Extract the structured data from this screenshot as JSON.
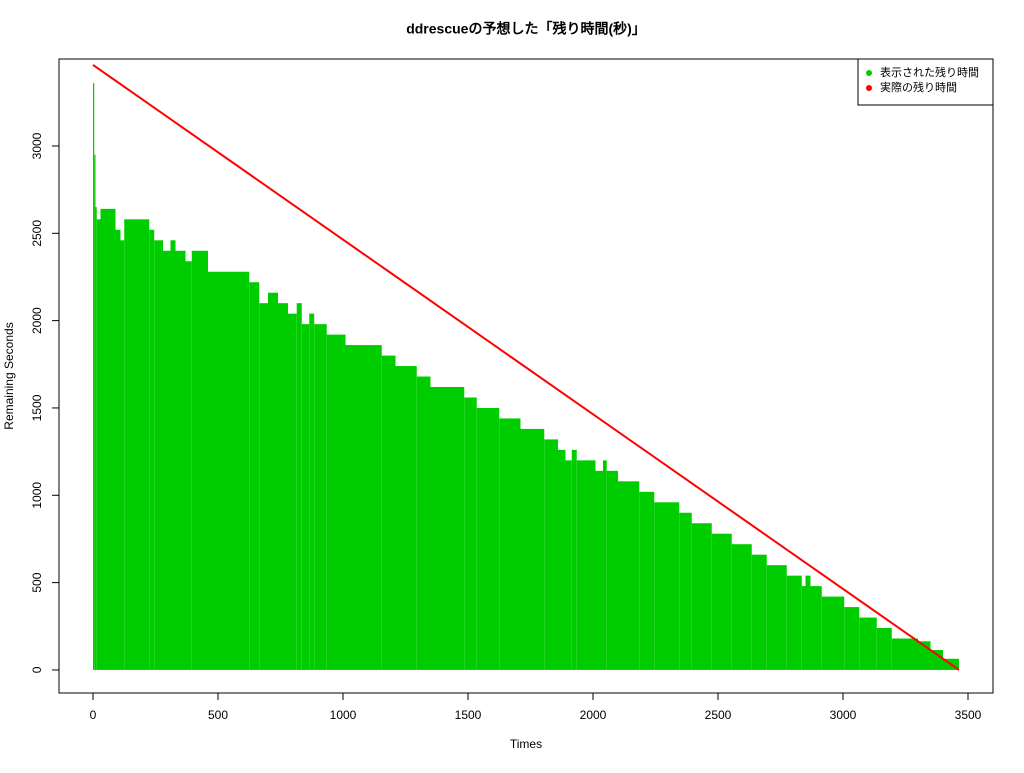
{
  "chart_data": {
    "type": "line",
    "title": "ddrescueの予想した「残り時間(秒)」",
    "x_label": "Times",
    "y_label": "Remaining Seconds",
    "xlim": [
      -136,
      3600
    ],
    "ylim": [
      -132,
      3498
    ],
    "xticks": [
      0,
      500,
      1000,
      1500,
      2000,
      2500,
      3000,
      3500
    ],
    "yticks": [
      0,
      500,
      1000,
      1500,
      2000,
      2500,
      3000
    ],
    "legend": "top-right",
    "series": [
      {
        "name": "表示された残り時間",
        "color": "#00cd00",
        "step": true,
        "fill": true,
        "x": [
          0,
          5,
          10,
          15,
          30,
          90,
          110,
          125,
          225,
          245,
          280,
          310,
          330,
          370,
          395,
          460,
          625,
          665,
          700,
          740,
          780,
          815,
          835,
          865,
          885,
          935,
          1010,
          1155,
          1210,
          1295,
          1350,
          1485,
          1535,
          1625,
          1710,
          1805,
          1860,
          1890,
          1915,
          1935,
          2010,
          2040,
          2055,
          2100,
          2185,
          2245,
          2345,
          2395,
          2475,
          2555,
          2635,
          2695,
          2775,
          2835,
          2850,
          2870,
          2915,
          3005,
          3065,
          3135,
          3195,
          3300,
          3350,
          3400,
          3464
        ],
        "values": [
          3360,
          2950,
          2650,
          2580,
          2640,
          2520,
          2460,
          2580,
          2520,
          2460,
          2400,
          2460,
          2400,
          2340,
          2400,
          2280,
          2220,
          2100,
          2160,
          2100,
          2040,
          2100,
          1980,
          2040,
          1980,
          1920,
          1860,
          1800,
          1740,
          1680,
          1620,
          1560,
          1500,
          1440,
          1380,
          1320,
          1260,
          1200,
          1260,
          1200,
          1140,
          1200,
          1140,
          1080,
          1020,
          960,
          900,
          840,
          780,
          720,
          660,
          600,
          540,
          480,
          540,
          480,
          420,
          360,
          300,
          240,
          180,
          164,
          114,
          64,
          0
        ]
      },
      {
        "name": "実際の残り時間",
        "color": "#ff0000",
        "x": [
          0,
          3464
        ],
        "values": [
          3464,
          0
        ]
      }
    ]
  }
}
